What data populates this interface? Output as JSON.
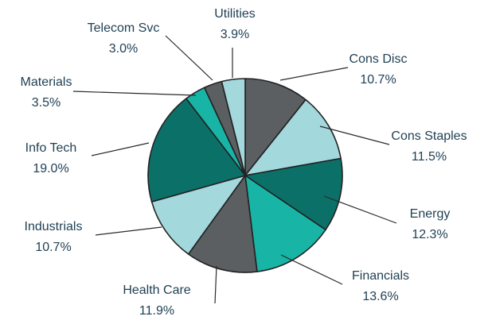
{
  "chart_data": {
    "type": "pie",
    "title": "",
    "start_angle_deg": 0,
    "direction": "clockwise",
    "slices": [
      {
        "label": "Cons Disc",
        "value": 10.7,
        "value_text": "10.7%",
        "color": "#5b5f62"
      },
      {
        "label": "Cons Staples",
        "value": 11.5,
        "value_text": "11.5%",
        "color": "#a3d8dc"
      },
      {
        "label": "Energy",
        "value": 12.3,
        "value_text": "12.3%",
        "color": "#0b7168"
      },
      {
        "label": "Financials",
        "value": 13.6,
        "value_text": "13.6%",
        "color": "#18b5a6"
      },
      {
        "label": "Health Care",
        "value": 11.9,
        "value_text": "11.9%",
        "color": "#5b5f62"
      },
      {
        "label": "Industrials",
        "value": 10.7,
        "value_text": "10.7%",
        "color": "#a3d8dc"
      },
      {
        "label": "Info Tech",
        "value": 19.0,
        "value_text": "19.0%",
        "color": "#0b7168"
      },
      {
        "label": "Materials",
        "value": 3.5,
        "value_text": "3.5%",
        "color": "#18b5a6"
      },
      {
        "label": "Telecom Svc",
        "value": 3.0,
        "value_text": "3.0%",
        "color": "#5b5f62"
      },
      {
        "label": "Utilities",
        "value": 3.9,
        "value_text": "3.9%",
        "color": "#a3d8dc"
      }
    ]
  }
}
